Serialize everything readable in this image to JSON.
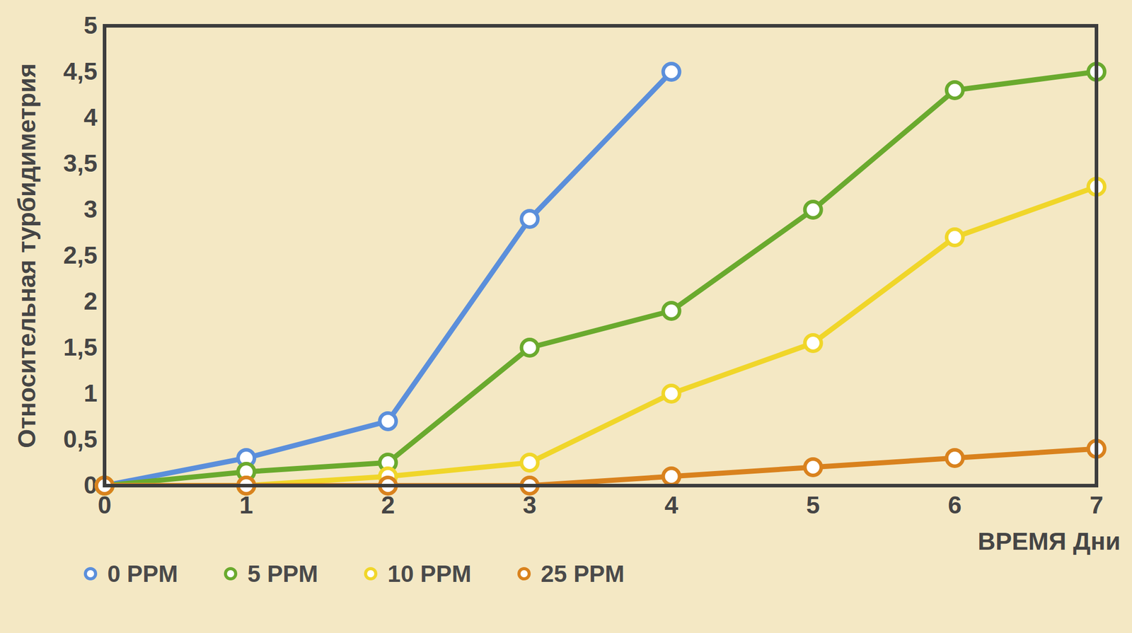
{
  "chart_data": {
    "type": "line",
    "x_label": "ВРЕМЯ Дни",
    "y_label": "Относительная турбидиметрия",
    "x": [
      0,
      1,
      2,
      3,
      4,
      5,
      6,
      7
    ],
    "series": [
      {
        "name": "0 PPM",
        "color": "#5b8fdb",
        "marker": "circle",
        "values": [
          0,
          0.3,
          0.7,
          2.9,
          4.5,
          null,
          null,
          null
        ]
      },
      {
        "name": "5 PPM",
        "color": "#6aaa2e",
        "marker": "circle",
        "values": [
          0,
          0.15,
          0.25,
          1.5,
          1.9,
          3.0,
          4.3,
          4.5
        ]
      },
      {
        "name": "10 PPM",
        "color": "#f0d62a",
        "marker": "circle",
        "values": [
          0,
          0,
          0.1,
          0.25,
          1.0,
          1.55,
          2.7,
          3.25
        ]
      },
      {
        "name": "25 PPM",
        "color": "#d9821e",
        "marker": "circle",
        "values": [
          0,
          0,
          0,
          0,
          0.1,
          0.2,
          0.3,
          0.4
        ]
      }
    ],
    "xlim": [
      0,
      7
    ],
    "xticks": [
      0,
      1,
      2,
      3,
      4,
      5,
      6,
      7
    ],
    "ylim": [
      0,
      5
    ],
    "yticks": [
      0,
      {
        "value": 0.5,
        "label": "0,5"
      },
      1,
      {
        "value": 1.5,
        "label": "1,5"
      },
      2,
      {
        "value": 2.5,
        "label": "2,5"
      },
      3,
      {
        "value": 3.5,
        "label": "3,5"
      },
      4,
      {
        "value": 4.5,
        "label": "4,5"
      },
      5
    ],
    "grid": false,
    "legend": "bottom"
  }
}
